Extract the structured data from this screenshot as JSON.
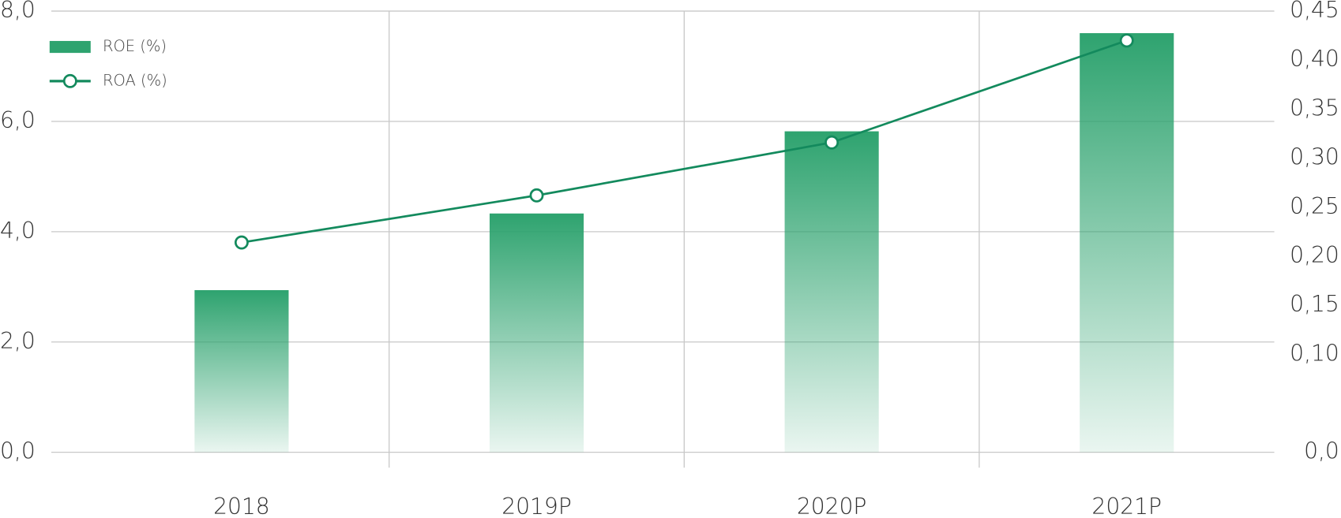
{
  "chart_data": {
    "type": "bar",
    "categories": [
      "2018",
      "2019P",
      "2020P",
      "2021P"
    ],
    "series": [
      {
        "name": "ROE (%)",
        "type": "bar",
        "color": "#2ea36f",
        "values": [
          2.94,
          4.33,
          5.82,
          7.6
        ]
      },
      {
        "name": "ROA (%)",
        "type": "line",
        "color": "#138a5d",
        "axis": "y2",
        "values": [
          0.214,
          0.262,
          0.316,
          0.42
        ]
      }
    ],
    "ylim": [
      0,
      8
    ],
    "yticks": [
      {
        "value": 0,
        "label": "0,0"
      },
      {
        "value": 2,
        "label": "2,0"
      },
      {
        "value": 4,
        "label": "4,0"
      },
      {
        "value": 6,
        "label": "6,0"
      },
      {
        "value": 8,
        "label": "8,0"
      }
    ],
    "y2lim": [
      0,
      0.45
    ],
    "y2ticks": [
      {
        "value": 0,
        "label": "0,0"
      },
      {
        "value": 0.1,
        "label": "0,10"
      },
      {
        "value": 0.15,
        "label": "0,15"
      },
      {
        "value": 0.2,
        "label": "0,20"
      },
      {
        "value": 0.25,
        "label": "0,25"
      },
      {
        "value": 0.3,
        "label": "0,30"
      },
      {
        "value": 0.35,
        "label": "0,35"
      },
      {
        "value": 0.4,
        "label": "0,40"
      },
      {
        "value": 0.45,
        "label": "0,45"
      }
    ],
    "grid": true,
    "legend": "top-left"
  }
}
